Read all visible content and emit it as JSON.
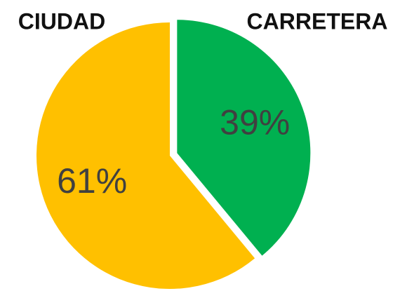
{
  "chart_data": {
    "type": "pie",
    "categories": [
      "CARRETERA",
      "CIUDAD"
    ],
    "values": [
      39,
      61
    ],
    "value_labels": [
      "39%",
      "61%"
    ],
    "colors": [
      "#00b050",
      "#ffc000"
    ],
    "exploded": [
      true,
      false
    ]
  }
}
